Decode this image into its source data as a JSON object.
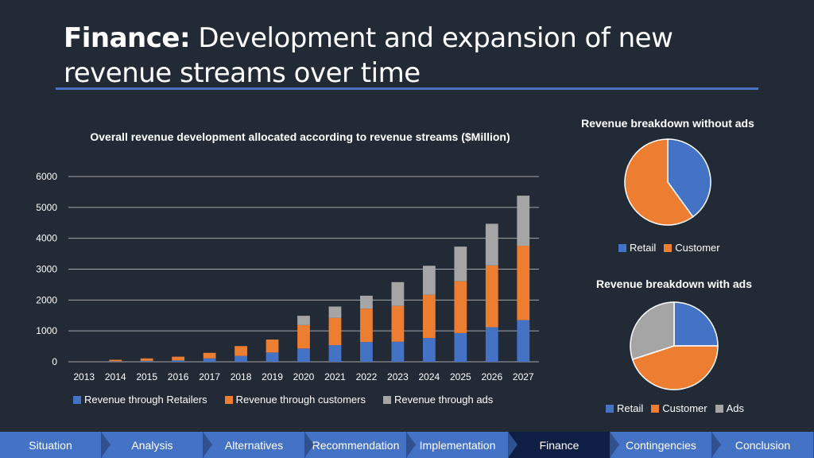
{
  "header": {
    "title_bold": "Finance:",
    "title_rest": " Development and expansion of new revenue streams over time"
  },
  "colors": {
    "retail": "#4472c4",
    "customer": "#ed7d31",
    "ads": "#a5a5a5",
    "accent": "#4a72c4",
    "nav": "#4472c4",
    "nav_active": "#0f1e44"
  },
  "chart_data": [
    {
      "type": "bar",
      "stacked": true,
      "title": "Overall revenue development allocated according to revenue streams ($Million)",
      "categories": [
        "2013",
        "2014",
        "2015",
        "2016",
        "2017",
        "2018",
        "2019",
        "2020",
        "2021",
        "2022",
        "2023",
        "2024",
        "2025",
        "2026",
        "2027"
      ],
      "series": [
        {
          "name": "Revenue through Retailers",
          "values": [
            0,
            15,
            30,
            45,
            110,
            190,
            300,
            430,
            540,
            640,
            650,
            770,
            930,
            1120,
            1350
          ]
        },
        {
          "name": "Revenue through customers",
          "values": [
            0,
            50,
            80,
            120,
            180,
            320,
            420,
            760,
            880,
            1080,
            1160,
            1400,
            1680,
            2000,
            2410
          ]
        },
        {
          "name": "Revenue through ads",
          "values": [
            0,
            0,
            0,
            0,
            0,
            0,
            0,
            300,
            370,
            420,
            770,
            940,
            1120,
            1350,
            1620
          ]
        }
      ],
      "yticks": [
        0,
        1000,
        2000,
        3000,
        4000,
        5000,
        6000
      ],
      "ylim": [
        0,
        6000
      ],
      "legend": "bottom"
    },
    {
      "type": "pie",
      "title": "Revenue breakdown without ads",
      "labels": [
        "Retail",
        "Customer"
      ],
      "values": [
        40,
        60
      ],
      "legend": "bottom"
    },
    {
      "type": "pie",
      "title": "Revenue breakdown with ads",
      "labels": [
        "Retail",
        "Customer",
        "Ads"
      ],
      "values": [
        25,
        45,
        30
      ],
      "legend": "bottom"
    }
  ],
  "nav": {
    "items": [
      "Situation",
      "Analysis",
      "Alternatives",
      "Recommendation",
      "Implementation",
      "Finance",
      "Contingencies",
      "Conclusion"
    ],
    "active": "Finance"
  }
}
